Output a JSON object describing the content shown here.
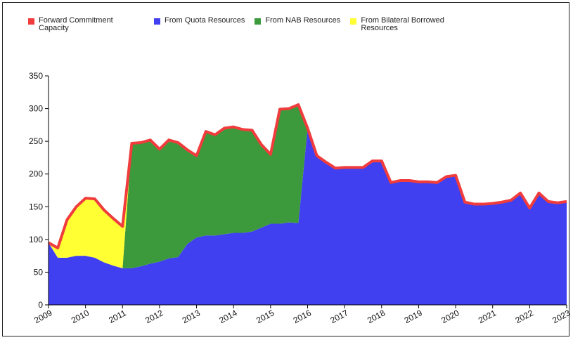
{
  "chart_data": {
    "type": "stacked-area",
    "x": [
      2009,
      2009.25,
      2009.5,
      2009.75,
      2010,
      2010.25,
      2010.5,
      2010.75,
      2011,
      2011.25,
      2011.5,
      2011.75,
      2012,
      2012.25,
      2012.5,
      2012.75,
      2013,
      2013.25,
      2013.5,
      2013.75,
      2014,
      2014.25,
      2014.5,
      2014.75,
      2015,
      2015.25,
      2015.5,
      2015.75,
      2016,
      2016.25,
      2016.5,
      2016.75,
      2017,
      2017.25,
      2017.5,
      2017.75,
      2018,
      2018.25,
      2018.5,
      2018.75,
      2019,
      2019.25,
      2019.5,
      2019.75,
      2020,
      2020.25,
      2020.5,
      2020.75,
      2021,
      2021.25,
      2021.5,
      2021.75,
      2022,
      2022.25,
      2022.5,
      2022.75,
      2023
    ],
    "line": {
      "name": "Forward Commitment Capacity",
      "color": "#f03c3c",
      "values": [
        95,
        87,
        130,
        150,
        163,
        162,
        145,
        132,
        120,
        247,
        248,
        252,
        238,
        252,
        248,
        237,
        228,
        265,
        260,
        270,
        272,
        268,
        267,
        245,
        230,
        299,
        300,
        306,
        270,
        228,
        218,
        209,
        210,
        210,
        210,
        220,
        220,
        187,
        190,
        190,
        188,
        188,
        187,
        196,
        198,
        157,
        154,
        154,
        155,
        157,
        160,
        171,
        148,
        171,
        158,
        156,
        158
      ]
    },
    "series": [
      {
        "name": "From Quota Resources",
        "color": "#4040f0",
        "values": [
          95,
          72,
          72,
          75,
          75,
          72,
          65,
          60,
          56,
          56,
          59,
          63,
          66,
          71,
          73,
          93,
          103,
          106,
          106,
          108,
          110,
          110,
          112,
          118,
          124,
          124,
          126,
          125,
          270,
          228,
          218,
          209,
          210,
          210,
          210,
          220,
          220,
          187,
          190,
          190,
          188,
          188,
          187,
          196,
          198,
          157,
          154,
          154,
          155,
          157,
          160,
          171,
          148,
          171,
          158,
          156,
          158
        ]
      },
      {
        "name": "From NAB Resources",
        "color": "#3c9a3c",
        "values": [
          0,
          0,
          0,
          0,
          0,
          0,
          0,
          0,
          0,
          191,
          189,
          189,
          172,
          181,
          175,
          144,
          125,
          159,
          154,
          162,
          162,
          158,
          155,
          127,
          106,
          175,
          174,
          181,
          0,
          0,
          0,
          0,
          0,
          0,
          0,
          0,
          0,
          0,
          0,
          0,
          0,
          0,
          0,
          0,
          0,
          0,
          0,
          0,
          0,
          0,
          0,
          0,
          0,
          0,
          0,
          0,
          0
        ]
      },
      {
        "name": "From Bilateral Borrowed Resources",
        "color": "#ffff33",
        "values": [
          0,
          15,
          58,
          75,
          88,
          90,
          80,
          72,
          64,
          0,
          0,
          0,
          0,
          0,
          0,
          0,
          0,
          0,
          0,
          0,
          0,
          0,
          0,
          0,
          0,
          0,
          0,
          0,
          0,
          0,
          0,
          0,
          0,
          0,
          0,
          0,
          0,
          0,
          0,
          0,
          0,
          0,
          0,
          0,
          0,
          0,
          0,
          0,
          0,
          0,
          0,
          0,
          0,
          0,
          0,
          0,
          0
        ]
      }
    ],
    "xlim": [
      2009,
      2023
    ],
    "xticks": [
      2009,
      2010,
      2011,
      2012,
      2013,
      2014,
      2015,
      2016,
      2017,
      2018,
      2019,
      2020,
      2021,
      2022,
      2023
    ],
    "ylim": [
      0,
      350
    ],
    "yticks": [
      0,
      50,
      100,
      150,
      200,
      250,
      300,
      350
    ]
  }
}
